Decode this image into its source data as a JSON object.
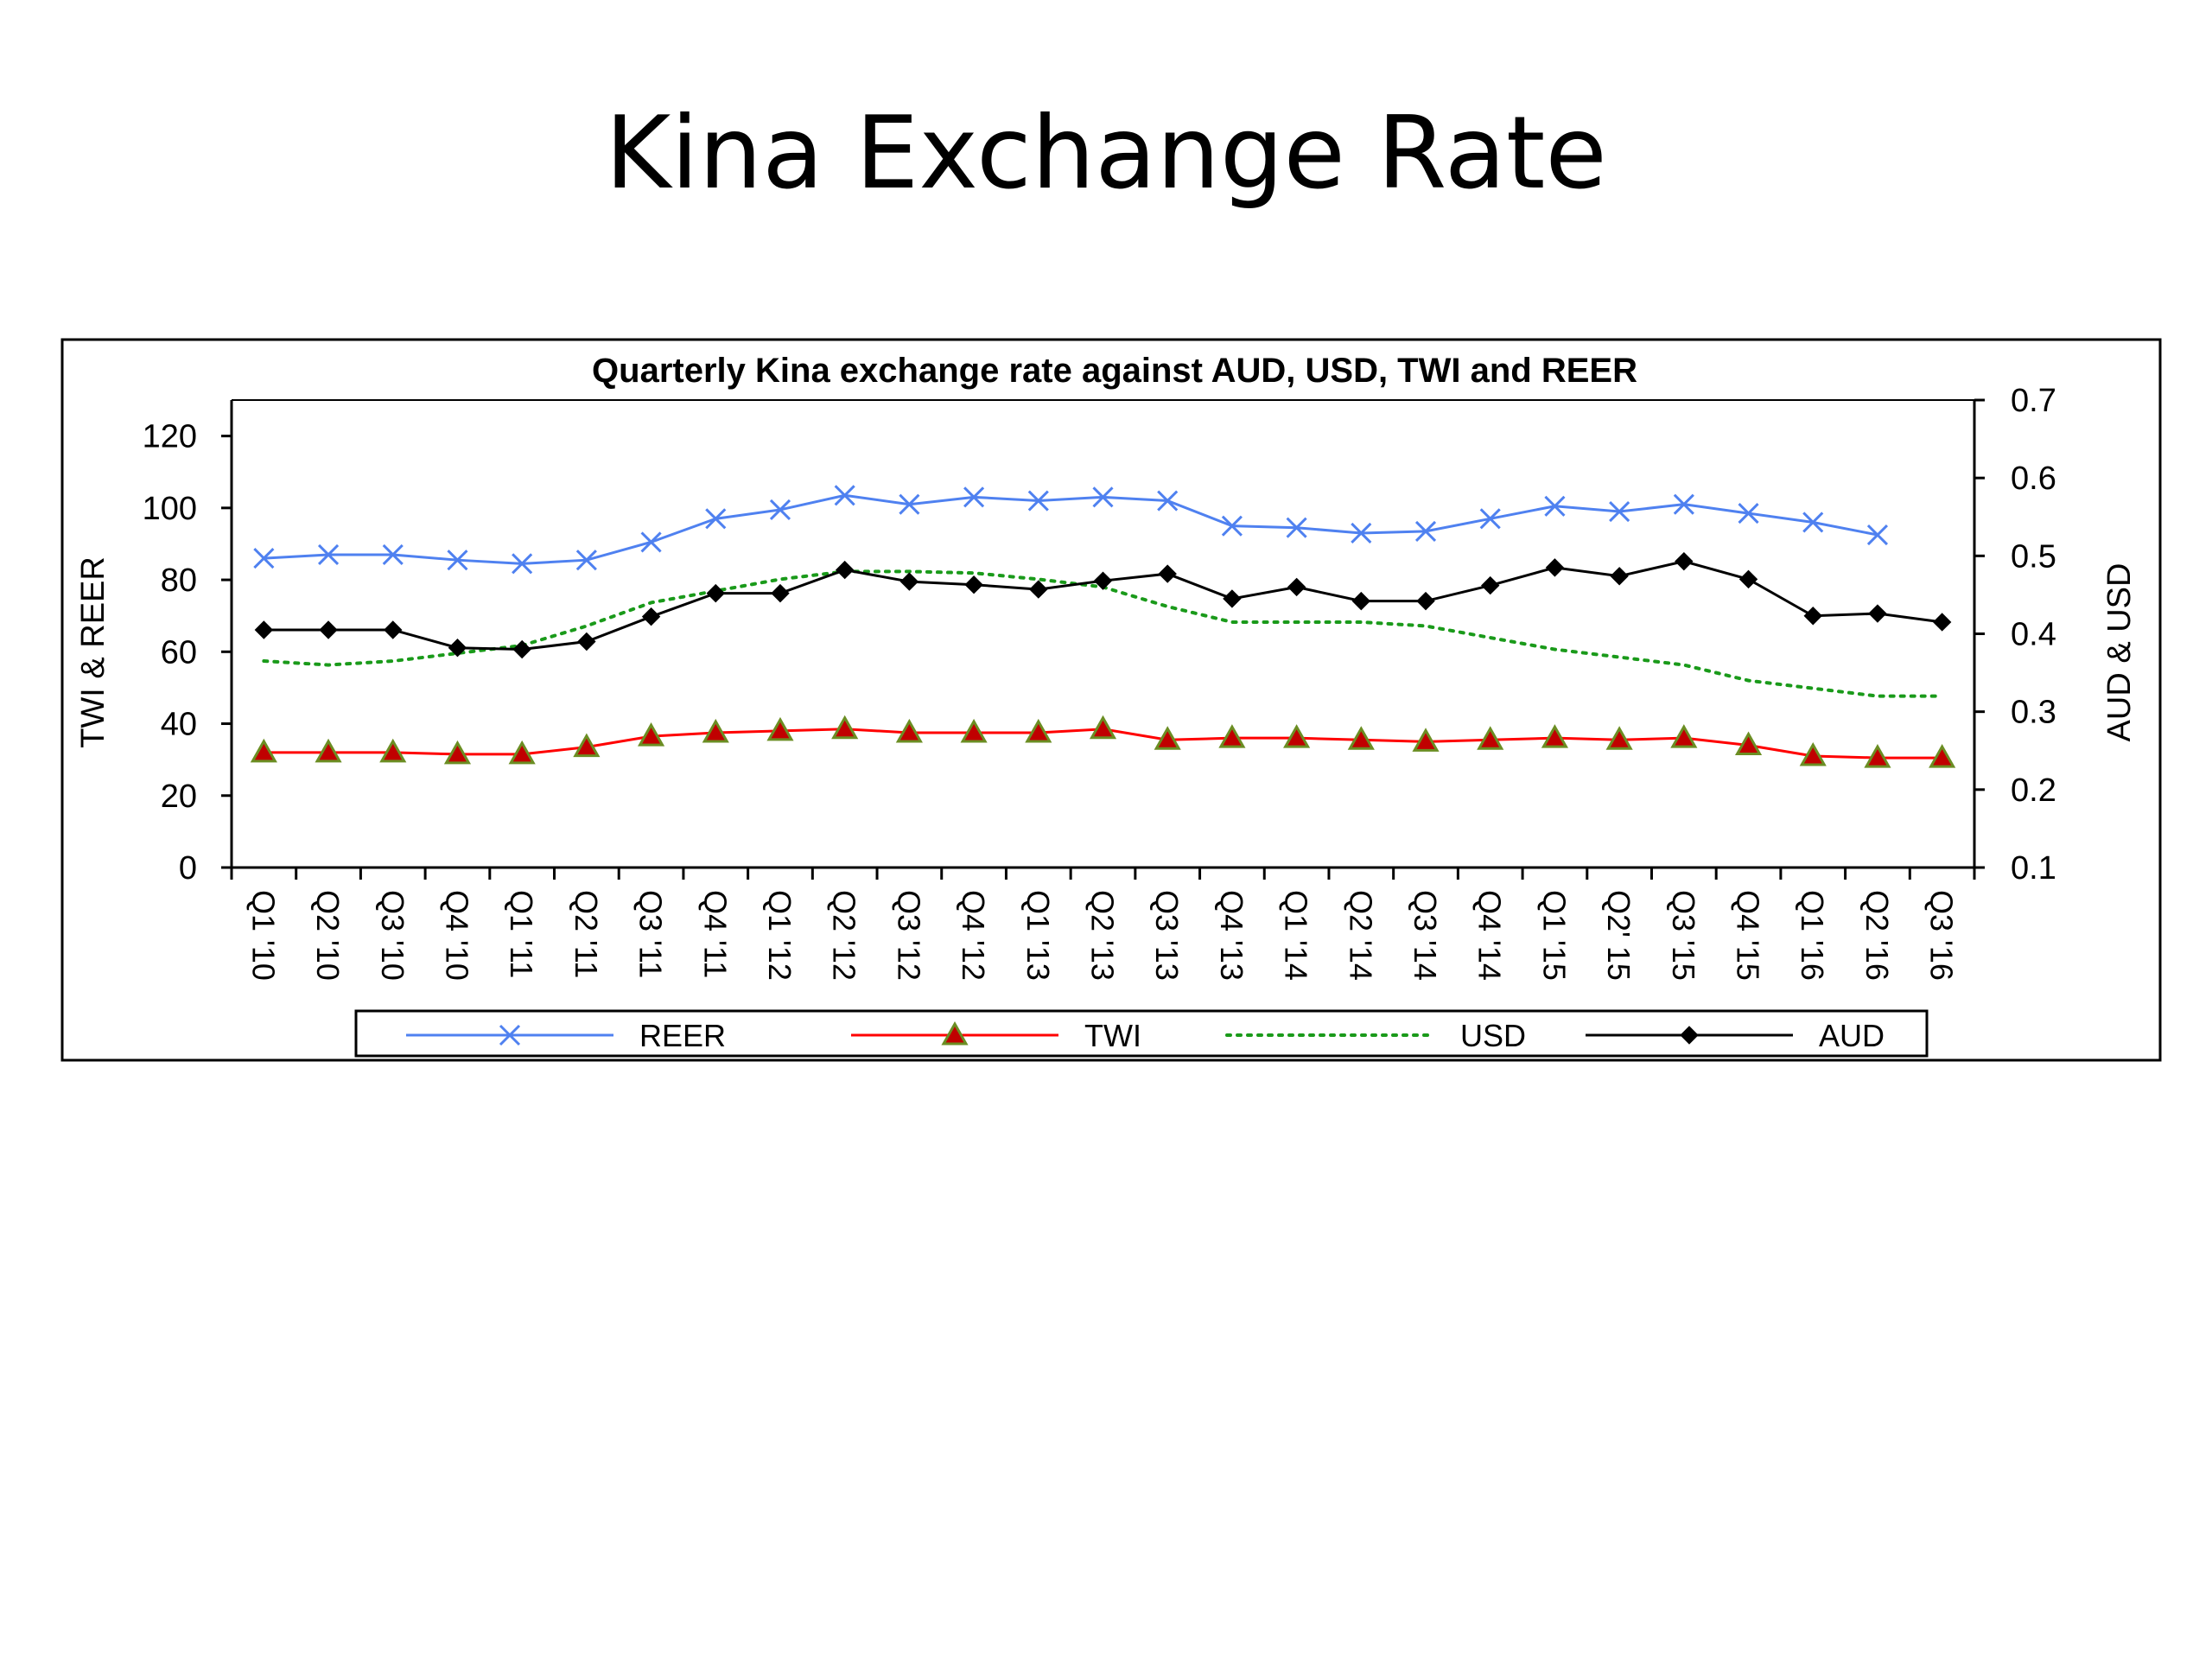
{
  "slide": {
    "title": "Kina Exchange Rate"
  },
  "chart_data": {
    "type": "line",
    "title": "Quarterly Kina exchange rate against AUD,  USD, TWI and REER",
    "y_left": {
      "label": "TWI & REER",
      "range": [
        0,
        130
      ],
      "ticks": [
        0,
        20,
        40,
        60,
        80,
        100,
        120
      ]
    },
    "y_right": {
      "label": "AUD & USD",
      "range": [
        0.1,
        0.7
      ],
      "ticks": [
        "0.1",
        "0.2",
        "0.3",
        "0.4",
        "0.5",
        "0.6",
        "0.7"
      ]
    },
    "categories": [
      "Q1 '10",
      "Q2 '10",
      "Q3 '10",
      "Q4 '10",
      "Q1 '11",
      "Q2 '11",
      "Q3 '11",
      "Q4 '11",
      "Q1 '12",
      "Q2 '12",
      "Q3 '12",
      "Q4 '12",
      "Q1 '13",
      "Q2 '13",
      "Q3 '13",
      "Q4 '13",
      "Q1 '14",
      "Q2 '14",
      "Q3 '14",
      "Q4 '14",
      "Q1 '15",
      "Q2' 15",
      "Q3 '15",
      "Q4 '15",
      "Q1 '16",
      "Q2 '16",
      "Q3 '16"
    ],
    "grid": false,
    "legend_position": "bottom",
    "series": [
      {
        "name": "REER",
        "axis": "left",
        "color": "#4f81f0",
        "style": "solid",
        "marker": "x",
        "values": [
          86,
          87,
          87,
          85.5,
          84.5,
          85.5,
          90.5,
          97,
          99.5,
          103.5,
          101,
          103,
          102,
          103,
          102,
          95,
          94.5,
          93,
          93.5,
          97,
          100.5,
          99,
          101,
          98.5,
          96,
          92.5,
          null
        ]
      },
      {
        "name": "TWI",
        "axis": "left",
        "color": "#ff0000",
        "style": "solid",
        "marker": "triangle",
        "values": [
          32,
          32,
          32,
          31.5,
          31.5,
          33.5,
          36.5,
          37.5,
          38,
          38.5,
          37.5,
          37.5,
          37.5,
          38.5,
          35.5,
          36,
          36,
          35.5,
          35,
          35.5,
          36,
          35.5,
          36,
          34,
          31,
          30.5,
          30.5
        ]
      },
      {
        "name": "USD",
        "axis": "right",
        "color": "#1a9a1a",
        "style": "dotted",
        "marker": "none",
        "values": [
          0.365,
          0.36,
          0.365,
          0.375,
          0.385,
          0.41,
          0.44,
          0.455,
          0.47,
          0.48,
          0.48,
          0.478,
          0.47,
          0.46,
          0.435,
          0.415,
          0.415,
          0.415,
          0.41,
          0.395,
          0.38,
          0.37,
          0.36,
          0.34,
          0.33,
          0.32,
          0.32
        ]
      },
      {
        "name": "AUD",
        "axis": "right",
        "color": "#000000",
        "style": "solid",
        "marker": "diamond",
        "values": [
          0.405,
          0.405,
          0.405,
          0.382,
          0.38,
          0.39,
          0.422,
          0.452,
          0.452,
          0.482,
          0.467,
          0.463,
          0.457,
          0.468,
          0.477,
          0.445,
          0.46,
          0.442,
          0.442,
          0.462,
          0.485,
          0.474,
          0.493,
          0.47,
          0.423,
          0.426,
          0.415
        ]
      }
    ]
  }
}
